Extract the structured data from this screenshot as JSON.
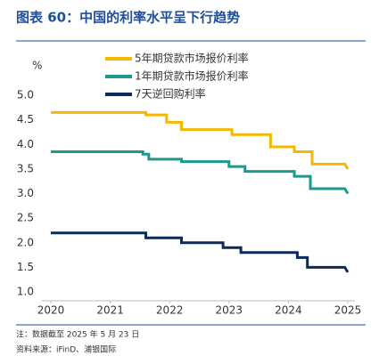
{
  "chart_data": {
    "type": "line",
    "title": "图表 60：中国的利率水平呈下行趋势",
    "y_label": "%",
    "xlim": [
      2020,
      2025
    ],
    "xticks": [
      2020,
      2021,
      2022,
      2023,
      2024,
      2025
    ],
    "ylim": [
      1,
      5
    ],
    "yticks": [
      {
        "value": 1,
        "label": "1.0"
      },
      {
        "value": 1.5,
        "label": "1.5"
      },
      {
        "value": 2,
        "label": "2.0"
      },
      {
        "value": 2.5,
        "label": "2.5"
      },
      {
        "value": 3,
        "label": "3.0"
      },
      {
        "value": 3.5,
        "label": "3.5"
      },
      {
        "value": 4,
        "label": "4.0"
      },
      {
        "value": 4.5,
        "label": "4.5"
      },
      {
        "value": 5,
        "label": "5.0"
      }
    ],
    "series": [
      {
        "name": "5年期贷款市场报价利率",
        "color": "#f5b800",
        "x": [
          2020,
          2021.6,
          2021.6,
          2021.95,
          2021.95,
          2022.2,
          2022.2,
          2023.05,
          2023.05,
          2023.7,
          2023.7,
          2024.1,
          2024.1,
          2024.4,
          2024.4,
          2024.95,
          2025
        ],
        "values": [
          4.65,
          4.65,
          4.6,
          4.6,
          4.45,
          4.45,
          4.3,
          4.3,
          4.2,
          4.2,
          3.95,
          3.95,
          3.85,
          3.85,
          3.6,
          3.6,
          3.5
        ]
      },
      {
        "name": "1年期贷款市场报价利率",
        "color": "#1a9a8c",
        "x": [
          2020,
          2021.55,
          2021.55,
          2021.65,
          2021.65,
          2022.2,
          2022.2,
          2023.0,
          2023.0,
          2023.27,
          2023.27,
          2024.1,
          2024.1,
          2024.37,
          2024.37,
          2024.95,
          2025
        ],
        "values": [
          3.85,
          3.85,
          3.8,
          3.8,
          3.7,
          3.7,
          3.65,
          3.65,
          3.55,
          3.55,
          3.45,
          3.45,
          3.35,
          3.35,
          3.1,
          3.1,
          3.0
        ]
      },
      {
        "name": "7天逆回购利率",
        "color": "#0c2a5c",
        "x": [
          2020,
          2021.6,
          2021.6,
          2022.2,
          2022.2,
          2022.9,
          2022.9,
          2023.2,
          2023.2,
          2024.15,
          2024.15,
          2024.32,
          2024.32,
          2024.95,
          2025
        ],
        "values": [
          2.2,
          2.2,
          2.1,
          2.1,
          2.0,
          2.0,
          1.9,
          1.9,
          1.8,
          1.8,
          1.7,
          1.7,
          1.5,
          1.5,
          1.4
        ]
      }
    ],
    "notes": [
      "注：数据截至 2025 年 5 月 23 日",
      "资料来源：iFinD、浦银国际"
    ]
  }
}
